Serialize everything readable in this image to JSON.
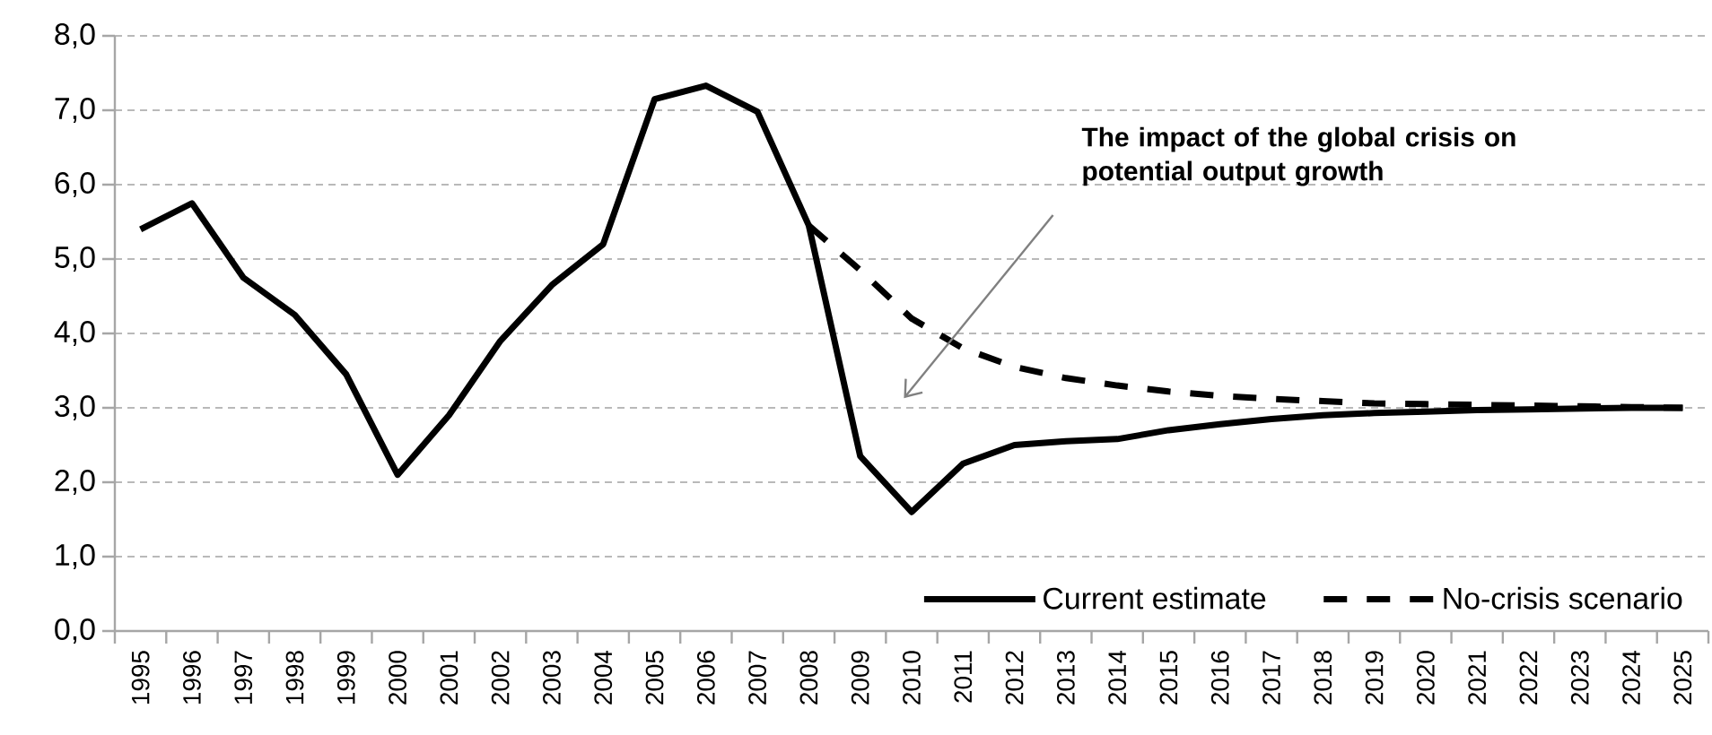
{
  "chart_data": {
    "type": "line",
    "categories": [
      "1995",
      "1996",
      "1997",
      "1998",
      "1999",
      "2000",
      "2001",
      "2002",
      "2003",
      "2004",
      "2005",
      "2006",
      "2007",
      "2008",
      "2009",
      "2010",
      "2011",
      "2012",
      "2013",
      "2014",
      "2015",
      "2016",
      "2017",
      "2018",
      "2019",
      "2020",
      "2021",
      "2022",
      "2023",
      "2024",
      "2025"
    ],
    "series": [
      {
        "name": "Current estimate",
        "color": "#000000",
        "line_style": "solid",
        "values": [
          5.4,
          5.75,
          4.75,
          4.25,
          3.45,
          2.1,
          2.9,
          3.9,
          4.65,
          5.2,
          7.15,
          7.33,
          6.98,
          5.45,
          2.35,
          1.6,
          2.25,
          2.5,
          2.55,
          2.58,
          2.7,
          2.78,
          2.85,
          2.9,
          2.93,
          2.95,
          2.97,
          2.98,
          2.99,
          3.0,
          3.0
        ]
      },
      {
        "name": "No-crisis scenario",
        "color": "#000000",
        "line_style": "dashed",
        "values": [
          null,
          null,
          null,
          null,
          null,
          null,
          null,
          null,
          null,
          null,
          null,
          null,
          null,
          5.45,
          4.85,
          4.2,
          3.8,
          3.55,
          3.4,
          3.3,
          3.22,
          3.16,
          3.12,
          3.09,
          3.06,
          3.05,
          3.04,
          3.03,
          3.02,
          3.01,
          3.0
        ]
      }
    ],
    "ylim": [
      0,
      8
    ],
    "yticks": [
      {
        "value": 0,
        "label": "0,0"
      },
      {
        "value": 1,
        "label": "1,0"
      },
      {
        "value": 2,
        "label": "2,0"
      },
      {
        "value": 3,
        "label": "3,0"
      },
      {
        "value": 4,
        "label": "4,0"
      },
      {
        "value": 5,
        "label": "5,0"
      },
      {
        "value": 6,
        "label": "6,0"
      },
      {
        "value": 7,
        "label": "7,0"
      },
      {
        "value": 8,
        "label": "8,0"
      }
    ],
    "grid": "y",
    "legend": "bottom right",
    "marker": "none",
    "annotations": [
      "The impact of the global crisis on potential output growth"
    ]
  }
}
